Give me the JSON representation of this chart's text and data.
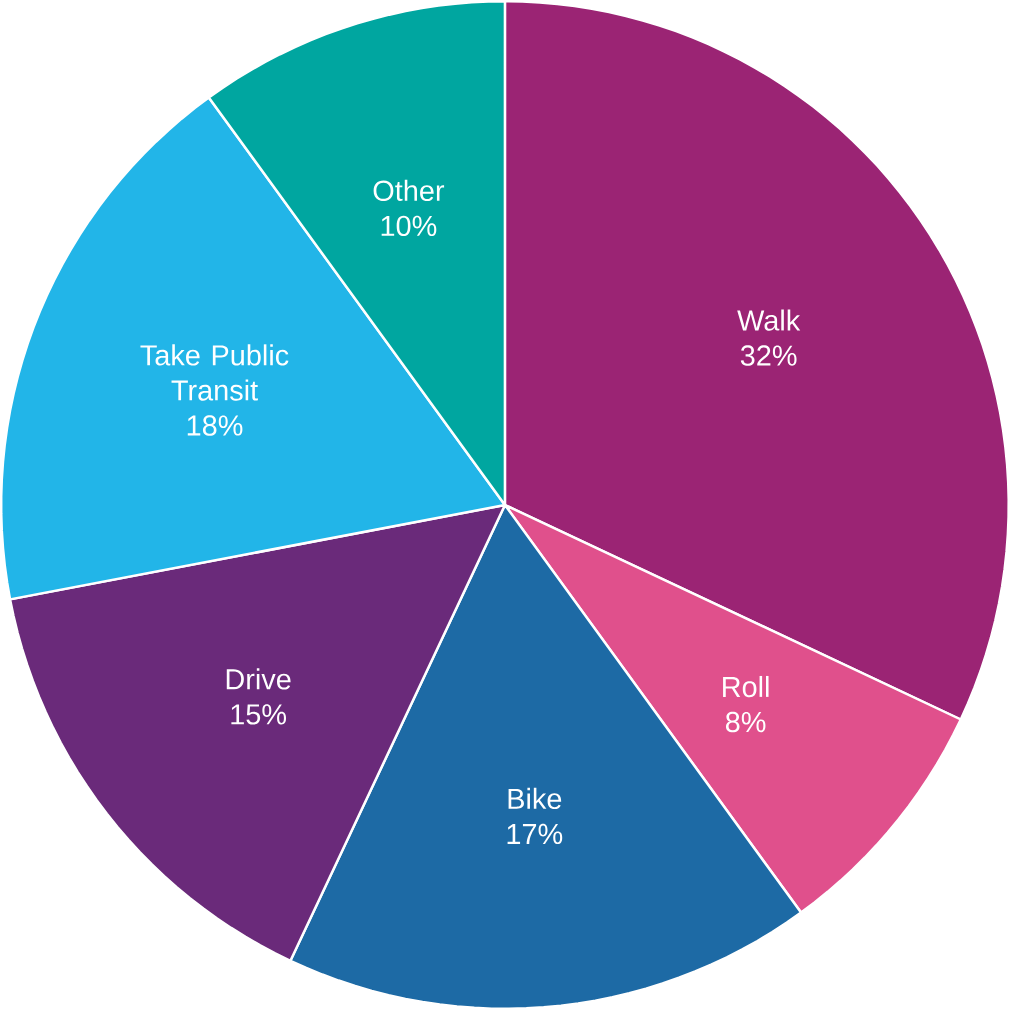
{
  "chart_data": {
    "type": "pie",
    "categories": [
      "Walk",
      "Roll",
      "Bike",
      "Drive",
      "Take Public Transit",
      "Other"
    ],
    "values": [
      32,
      8,
      17,
      15,
      18,
      10
    ],
    "value_labels": [
      "32%",
      "8%",
      "17%",
      "15%",
      "18%",
      "10%"
    ],
    "colors": [
      "#9b2474",
      "#e0508c",
      "#1d6aa5",
      "#6a2a7a",
      "#22b5e8",
      "#00a6a0"
    ]
  }
}
